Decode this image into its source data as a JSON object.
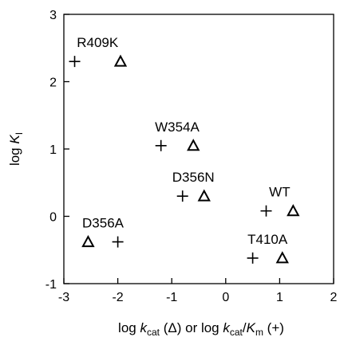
{
  "chart_data": {
    "type": "scatter",
    "xlim": [
      -3,
      2
    ],
    "ylim": [
      -1,
      3
    ],
    "xticks": [
      "-3",
      "-2",
      "-1",
      "0",
      "1",
      "2"
    ],
    "yticks": [
      "-1",
      "0",
      "1",
      "2",
      "3"
    ],
    "grid": false,
    "marker_legend": {
      "triangle": "log kcat",
      "plus": "log kcat/Km"
    },
    "points": [
      {
        "label": "R409K",
        "log_kcat": -1.95,
        "log_kcat_Km": -2.8,
        "log_Ki": 2.3
      },
      {
        "label": "W354A",
        "log_kcat": -0.6,
        "log_kcat_Km": -1.2,
        "log_Ki": 1.05
      },
      {
        "label": "D356N",
        "log_kcat": -0.4,
        "log_kcat_Km": -0.8,
        "log_Ki": 0.3
      },
      {
        "label": "WT",
        "log_kcat": 1.25,
        "log_kcat_Km": 0.75,
        "log_Ki": 0.08
      },
      {
        "label": "D356A",
        "log_kcat": -2.55,
        "log_kcat_Km": -2.0,
        "log_Ki": -0.38
      },
      {
        "label": "T410A",
        "log_kcat": 1.05,
        "log_kcat_Km": 0.5,
        "log_Ki": -0.62
      }
    ]
  },
  "axes": {
    "y_label_pre": "log ",
    "y_label_var": "K",
    "y_label_sub": "I",
    "x_label_pre": "log ",
    "x_label_var1": "k",
    "x_label_sub1": "cat",
    "x_label_mid": " (Δ) or log ",
    "x_label_var2": "k",
    "x_label_sub2": "cat",
    "x_label_slash": "/",
    "x_label_var3": "K",
    "x_label_sub3": "m",
    "x_label_post": " (+)"
  }
}
